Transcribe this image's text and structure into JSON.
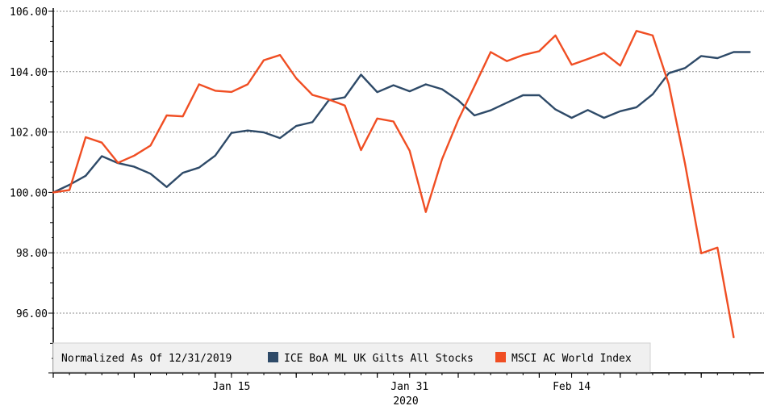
{
  "chart_data": {
    "type": "line",
    "title": "",
    "xlabel": "2020",
    "ylabel": "",
    "ylim": [
      94.0,
      106.0
    ],
    "y_ticks": [
      "106.00",
      "104.00",
      "102.00",
      "100.00",
      "98.00",
      "96.00"
    ],
    "y_tick_values": [
      106,
      104,
      102,
      100,
      98,
      96
    ],
    "x_ticks": [
      {
        "label": "Jan 15",
        "index": 11
      },
      {
        "label": "Jan 31",
        "index": 22
      },
      {
        "label": "Feb 14",
        "index": 32
      }
    ],
    "x_year_label": "2020",
    "grid": true,
    "legend_position": "bottom-left",
    "legend_prefix": "Normalized As Of 12/31/2019",
    "series": [
      {
        "name": "ICE BoA ML UK Gilts All Stocks",
        "color": "#2e4a68",
        "values": [
          100.0,
          100.25,
          100.55,
          101.2,
          100.97,
          100.85,
          100.62,
          100.18,
          100.65,
          100.82,
          101.22,
          101.97,
          102.05,
          101.99,
          101.8,
          102.2,
          102.33,
          103.05,
          103.15,
          103.9,
          103.32,
          103.55,
          103.35,
          103.58,
          103.42,
          103.05,
          102.55,
          102.72,
          102.97,
          103.22,
          103.22,
          102.75,
          102.47,
          102.73,
          102.47,
          102.69,
          102.82,
          103.25,
          103.95,
          104.12,
          104.52,
          104.45,
          104.65,
          104.65
        ]
      },
      {
        "name": "MSCI AC World Index",
        "color": "#f04e23",
        "values": [
          100.0,
          100.08,
          101.83,
          101.65,
          100.98,
          101.22,
          101.55,
          102.55,
          102.52,
          103.58,
          103.37,
          103.33,
          103.58,
          104.38,
          104.55,
          103.78,
          103.23,
          103.08,
          102.88,
          101.4,
          102.45,
          102.35,
          101.38,
          99.35,
          101.1,
          102.4,
          103.52,
          104.65,
          104.35,
          104.55,
          104.68,
          105.2,
          104.23,
          104.42,
          104.62,
          104.2,
          105.35,
          105.2,
          103.58,
          100.95,
          97.98,
          98.17,
          95.2
        ]
      }
    ]
  }
}
